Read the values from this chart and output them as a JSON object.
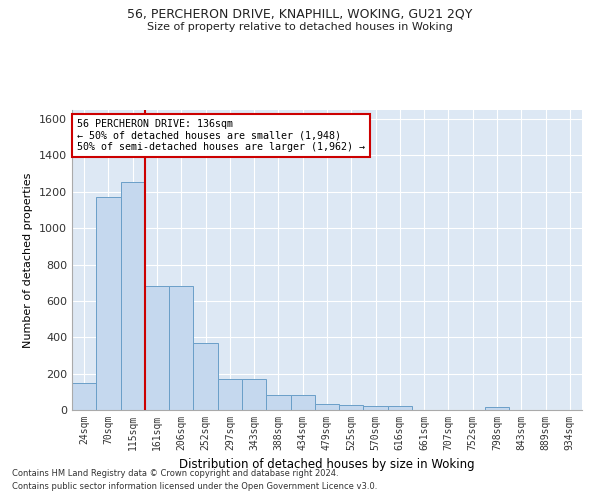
{
  "title1": "56, PERCHERON DRIVE, KNAPHILL, WOKING, GU21 2QY",
  "title2": "Size of property relative to detached houses in Woking",
  "xlabel": "Distribution of detached houses by size in Woking",
  "ylabel": "Number of detached properties",
  "categories": [
    "24sqm",
    "70sqm",
    "115sqm",
    "161sqm",
    "206sqm",
    "252sqm",
    "297sqm",
    "343sqm",
    "388sqm",
    "434sqm",
    "479sqm",
    "525sqm",
    "570sqm",
    "616sqm",
    "661sqm",
    "707sqm",
    "752sqm",
    "798sqm",
    "843sqm",
    "889sqm",
    "934sqm"
  ],
  "values": [
    147,
    1170,
    1255,
    680,
    680,
    370,
    170,
    170,
    82,
    82,
    35,
    30,
    22,
    22,
    0,
    0,
    0,
    15,
    0,
    0,
    0
  ],
  "bar_color": "#c5d8ee",
  "bar_edge_color": "#6a9fc8",
  "bar_width": 1.0,
  "vline_x": 2.5,
  "vline_color": "#cc0000",
  "annotation_text": "56 PERCHERON DRIVE: 136sqm\n← 50% of detached houses are smaller (1,948)\n50% of semi-detached houses are larger (1,962) →",
  "annotation_box_color": "#ffffff",
  "annotation_box_edge": "#cc0000",
  "ylim": [
    0,
    1650
  ],
  "yticks": [
    0,
    200,
    400,
    600,
    800,
    1000,
    1200,
    1400,
    1600
  ],
  "bg_color": "#dde8f4",
  "footer1": "Contains HM Land Registry data © Crown copyright and database right 2024.",
  "footer2": "Contains public sector information licensed under the Open Government Licence v3.0."
}
